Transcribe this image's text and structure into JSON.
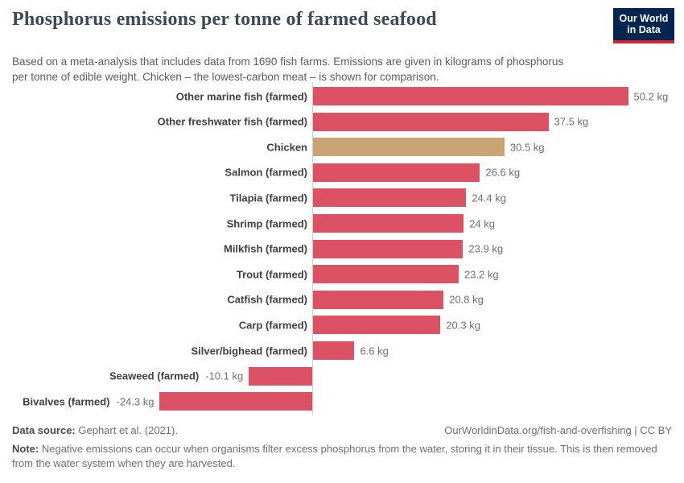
{
  "header": {
    "title": "Phosphorus emissions per tonne of farmed seafood",
    "subtitle": "Based on a meta-analysis that includes data from 1690 fish farms. Emissions are given in kilograms of phosphorus per tonne of edible weight. Chicken – the lowest-carbon meat – is shown for comparison.",
    "logo": {
      "line1": "Our World",
      "line2": "in Data",
      "bg_color": "#04264e",
      "accent_color": "#cf2636"
    }
  },
  "chart_data": {
    "type": "bar",
    "orientation": "horizontal",
    "title": "Phosphorus emissions per tonne of farmed seafood",
    "unit": "kg",
    "categories": [
      "Other marine fish (farmed)",
      "Other freshwater fish (farmed)",
      "Chicken",
      "Salmon (farmed)",
      "Tilapia (farmed)",
      "Shrimp (farmed)",
      "Milkfish (farmed)",
      "Trout (farmed)",
      "Catfish (farmed)",
      "Carp (farmed)",
      "Silver/bighead (farmed)",
      "Seaweed (farmed)",
      "Bivalves (farmed)"
    ],
    "values": [
      50.2,
      37.5,
      30.5,
      26.6,
      24.4,
      24,
      23.9,
      23.2,
      20.8,
      20.3,
      6.6,
      -10.1,
      -24.3
    ],
    "value_labels": [
      "50.2 kg",
      "37.5 kg",
      "30.5 kg",
      "26.6 kg",
      "24.4 kg",
      "24 kg",
      "23.9 kg",
      "23.2 kg",
      "20.8 kg",
      "20.3 kg",
      "6.6 kg",
      "-10.1 kg",
      "-24.3 kg"
    ],
    "highlight_index": 2,
    "colors": {
      "bar_default": "#dd5164",
      "bar_highlight": "#caa474",
      "zero_axis": "#cfcfcf"
    },
    "xlim": [
      -25,
      51
    ],
    "zero_axis_line": true,
    "grid": false,
    "legend": false
  },
  "footer": {
    "data_source_label": "Data source:",
    "data_source_value": "Gephart et al. (2021).",
    "url_text": "OurWorldinData.org/fish-and-overfishing | CC BY",
    "note_label": "Note:",
    "note_text": "Negative emissions can occur when organisms filter excess phosphorus from the water, storing it in their tissue. This is then removed from the water system when they are harvested."
  }
}
